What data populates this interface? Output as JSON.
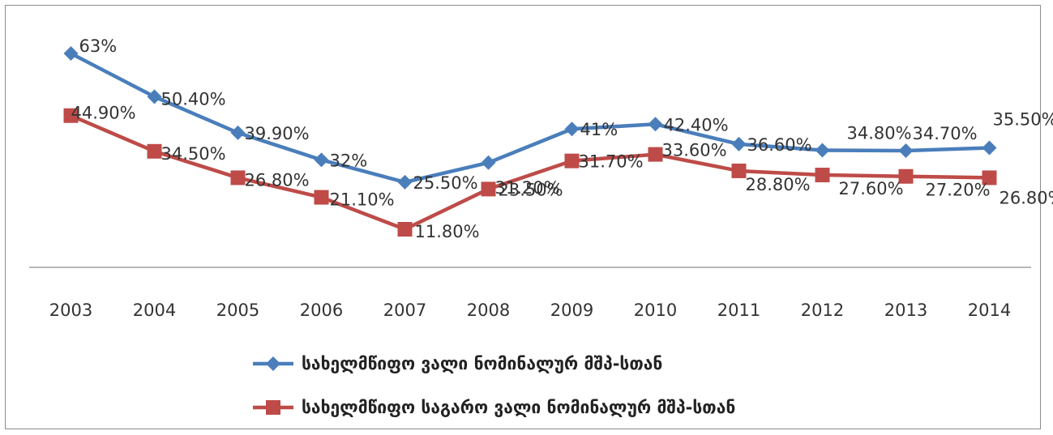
{
  "chart_data": {
    "type": "line",
    "categories": [
      "2003",
      "2004",
      "2005",
      "2006",
      "2007",
      "2008",
      "2009",
      "2010",
      "2011",
      "2012",
      "2013",
      "2014"
    ],
    "series": [
      {
        "name": "სახელმწიფო ვალი ნომინალურ მშპ-სთან",
        "color": "#4a7ebb",
        "marker": "diamond",
        "values": [
          63,
          50.4,
          39.9,
          32,
          25.5,
          31.2,
          41,
          42.4,
          36.6,
          34.8,
          34.7,
          35.5
        ],
        "labels": [
          "63%",
          "50.40%",
          "39.90%",
          "32%",
          "25.50%",
          "31.20%",
          "41%",
          "42.40%",
          "36.60%",
          "34.80%",
          "34.70%",
          "35.50%"
        ]
      },
      {
        "name": "სახელმწიფო საგარო ვალი ნომინალურ მშპ-სთან",
        "color": "#be4b48",
        "marker": "square",
        "values": [
          44.9,
          34.5,
          26.8,
          21.1,
          11.8,
          23.5,
          31.7,
          33.6,
          28.8,
          27.6,
          27.2,
          26.8
        ],
        "labels": [
          "44.90%",
          "34.50%",
          "26.80%",
          "21.10%",
          "11.80%",
          "23.50%",
          "31.70%",
          "33.60%",
          "28.80%",
          "27.60%",
          "27.20%",
          "26.80%"
        ]
      }
    ],
    "title": "",
    "xlabel": "",
    "ylabel": "",
    "ylim": [
      -15,
      70
    ],
    "grid": false,
    "legend_position": "bottom"
  }
}
